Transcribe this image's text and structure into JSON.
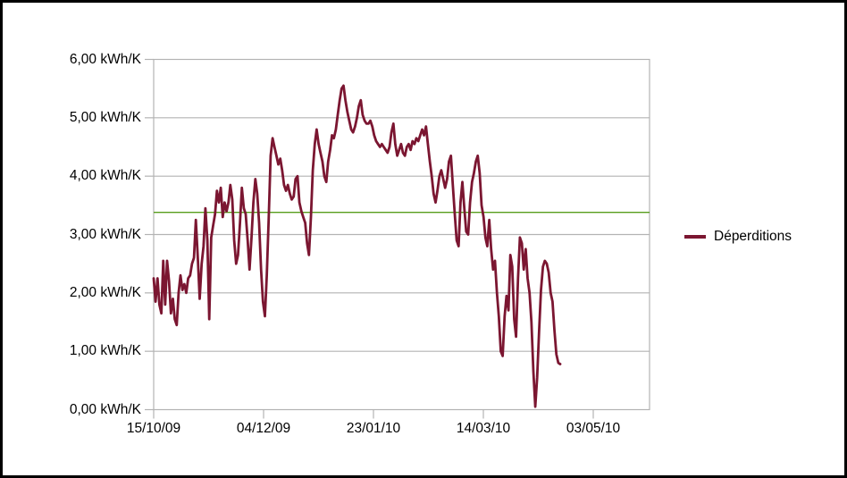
{
  "window": {
    "background_color": "#ffffff",
    "border_color": "#000000"
  },
  "chart_data": {
    "type": "line",
    "title": "",
    "xlabel": "",
    "ylabel": "",
    "unit": "kWh/K",
    "grid": "horizontal",
    "grid_color": "#b3b3b3",
    "axis_color": "#b3b3b3",
    "text_color": "#000000",
    "ylim": [
      0,
      6
    ],
    "y_tick_labels": [
      "6,00 kWh/K",
      "5,00 kWh/K",
      "4,00 kWh/K",
      "3,00 kWh/K",
      "2,00 kWh/K",
      "1,00 kWh/K",
      "0,00 kWh/K"
    ],
    "y_tick_values": [
      6,
      5,
      4,
      3,
      2,
      1,
      0
    ],
    "x_tick_labels": [
      "15/10/09",
      "04/12/09",
      "23/01/10",
      "14/03/10",
      "03/05/10"
    ],
    "x_range_days_per_tick": 50,
    "reference_line": {
      "value": 3.38,
      "color": "#579d1c"
    },
    "legend": {
      "position": "right",
      "label": "Déperditions",
      "marker_color": "#7b1631"
    },
    "series": [
      {
        "name": "Déperditions",
        "color": "#7b1631",
        "x_start": "15/10/09",
        "x_end": "mid-April 2010",
        "values": [
          2.25,
          1.85,
          2.25,
          1.8,
          1.65,
          2.55,
          1.8,
          2.55,
          2.2,
          1.65,
          1.9,
          1.55,
          1.45,
          2.0,
          2.3,
          2.05,
          2.15,
          2.0,
          2.25,
          2.3,
          2.5,
          2.6,
          3.25,
          2.6,
          1.9,
          2.5,
          2.8,
          3.45,
          2.9,
          1.55,
          2.95,
          3.15,
          3.35,
          3.75,
          3.55,
          3.8,
          3.3,
          3.55,
          3.4,
          3.55,
          3.85,
          3.6,
          2.9,
          2.5,
          2.65,
          3.2,
          3.8,
          3.45,
          3.35,
          2.9,
          2.4,
          2.95,
          3.55,
          3.95,
          3.7,
          3.2,
          2.4,
          1.85,
          1.6,
          2.3,
          3.3,
          4.35,
          4.65,
          4.5,
          4.35,
          4.2,
          4.3,
          4.1,
          3.85,
          3.75,
          3.85,
          3.7,
          3.6,
          3.65,
          3.95,
          4.0,
          3.55,
          3.4,
          3.3,
          3.2,
          2.85,
          2.65,
          3.3,
          4.1,
          4.55,
          4.8,
          4.55,
          4.4,
          4.25,
          4.0,
          3.9,
          4.25,
          4.45,
          4.7,
          4.65,
          4.8,
          5.05,
          5.3,
          5.5,
          5.55,
          5.3,
          5.1,
          4.95,
          4.8,
          4.75,
          4.85,
          5.0,
          5.2,
          5.3,
          5.05,
          4.95,
          4.9,
          4.9,
          4.95,
          4.85,
          4.7,
          4.6,
          4.55,
          4.5,
          4.55,
          4.5,
          4.45,
          4.4,
          4.5,
          4.75,
          4.9,
          4.55,
          4.35,
          4.45,
          4.55,
          4.4,
          4.35,
          4.5,
          4.55,
          4.45,
          4.6,
          4.55,
          4.65,
          4.6,
          4.7,
          4.8,
          4.7,
          4.85,
          4.55,
          4.25,
          4.0,
          3.7,
          3.55,
          3.75,
          4.0,
          4.1,
          3.95,
          3.8,
          3.95,
          4.25,
          4.35,
          3.85,
          3.35,
          2.9,
          2.8,
          3.55,
          3.9,
          3.45,
          3.05,
          3.0,
          3.55,
          3.9,
          4.05,
          4.25,
          4.35,
          4.05,
          3.5,
          3.3,
          2.95,
          2.8,
          3.25,
          2.75,
          2.4,
          2.55,
          2.0,
          1.6,
          1.0,
          0.92,
          1.6,
          1.95,
          1.7,
          2.65,
          2.45,
          1.55,
          1.25,
          2.25,
          2.95,
          2.85,
          2.4,
          2.75,
          2.25,
          2.0,
          1.5,
          0.65,
          0.05,
          0.55,
          1.35,
          2.05,
          2.45,
          2.55,
          2.5,
          2.35,
          2.0,
          1.85,
          1.35,
          0.95,
          0.8,
          0.78
        ]
      }
    ]
  }
}
